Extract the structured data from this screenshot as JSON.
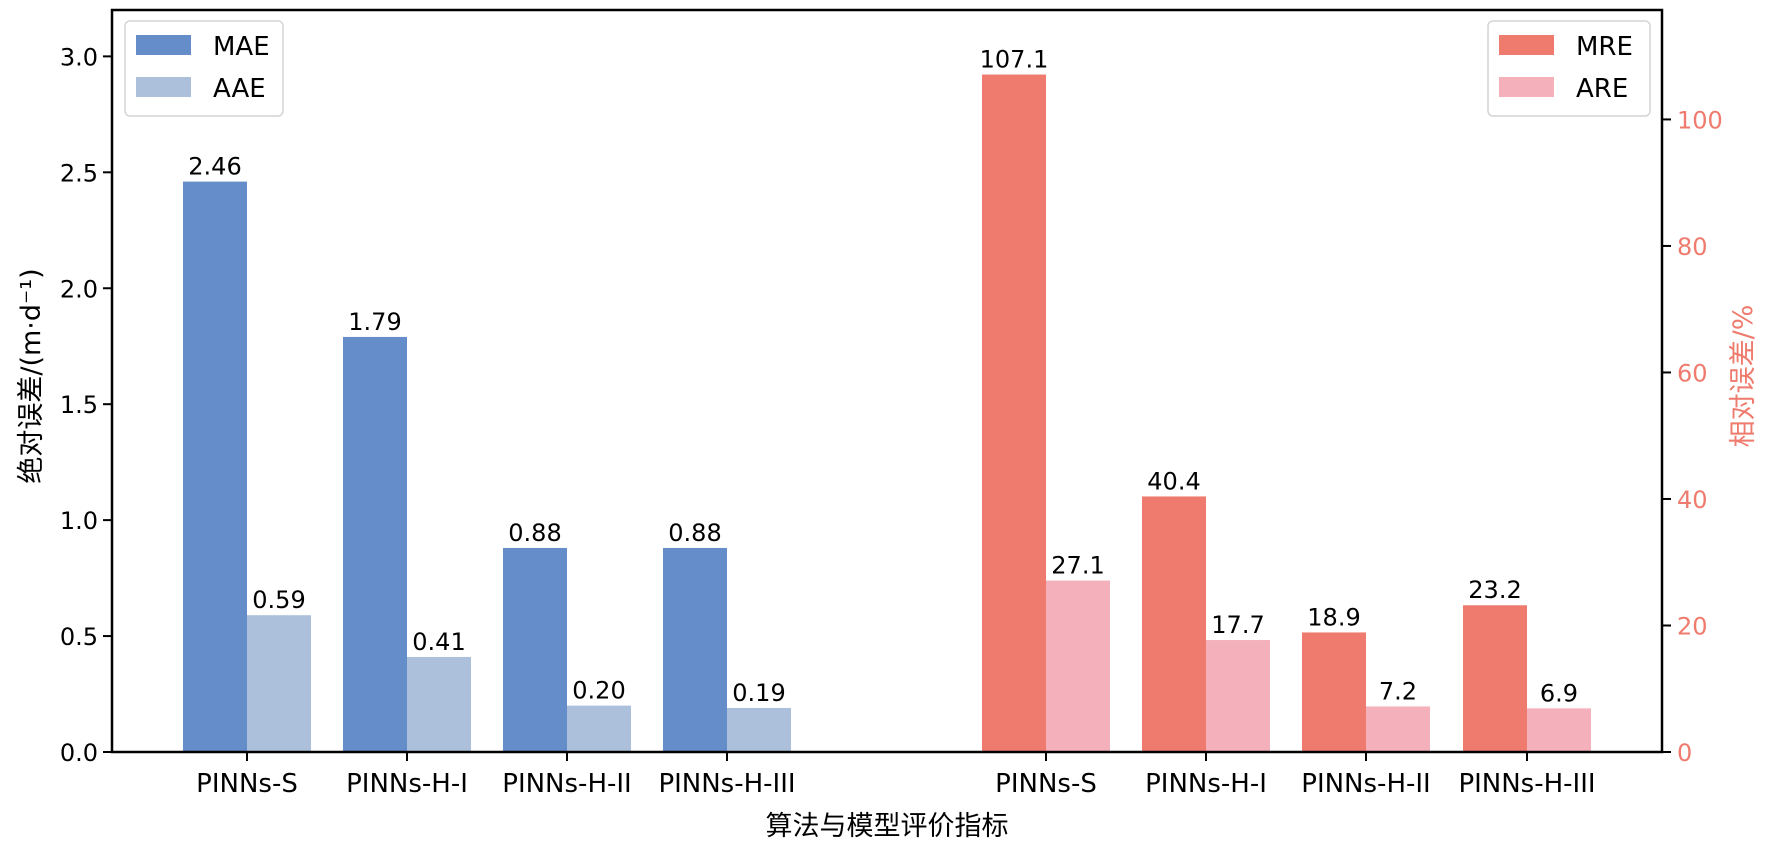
{
  "chart_data": {
    "type": "bar",
    "categories": [
      "PINNs-S",
      "PINNs-H-I",
      "PINNs-H-II",
      "PINNs-H-III"
    ],
    "left_group": {
      "axis": "left",
      "series": [
        {
          "name": "MAE",
          "values": [
            2.46,
            1.79,
            0.88,
            0.88
          ],
          "labels": [
            "2.46",
            "1.79",
            "0.88",
            "0.88"
          ],
          "color": "#658dca"
        },
        {
          "name": "AAE",
          "values": [
            0.59,
            0.41,
            0.2,
            0.19
          ],
          "labels": [
            "0.59",
            "0.41",
            "0.20",
            "0.19"
          ],
          "color": "#adc0db"
        }
      ]
    },
    "right_group": {
      "axis": "right",
      "series": [
        {
          "name": "MRE",
          "values": [
            107.1,
            40.4,
            18.9,
            23.2
          ],
          "labels": [
            "107.1",
            "40.4",
            "18.9",
            "23.2"
          ],
          "color": "#ee7b6d"
        },
        {
          "name": "ARE",
          "values": [
            27.1,
            17.7,
            7.2,
            6.9
          ],
          "labels": [
            "27.1",
            "17.7",
            "7.2",
            "6.9"
          ],
          "color": "#f4b1bb"
        }
      ]
    },
    "xlabel": "算法与模型评价指标",
    "ylabel_left": "绝对误差/(m·d⁻¹)",
    "ylabel_right": "相对误差/%",
    "ylim_left": [
      0,
      3.2
    ],
    "ylim_right": [
      0,
      117.3
    ],
    "yticks_left": [
      "0.0",
      "0.5",
      "1.0",
      "1.5",
      "2.0",
      "2.5",
      "3.0"
    ],
    "yticks_left_values": [
      0,
      0.5,
      1.0,
      1.5,
      2.0,
      2.5,
      3.0
    ],
    "yticks_right": [
      "0",
      "20",
      "40",
      "60",
      "80",
      "100"
    ],
    "yticks_right_values": [
      0,
      20,
      40,
      60,
      80,
      100
    ],
    "right_axis_color": "#ee7b6d",
    "grid": false,
    "legend_left_placement": "upper-left",
    "legend_right_placement": "upper-right"
  }
}
